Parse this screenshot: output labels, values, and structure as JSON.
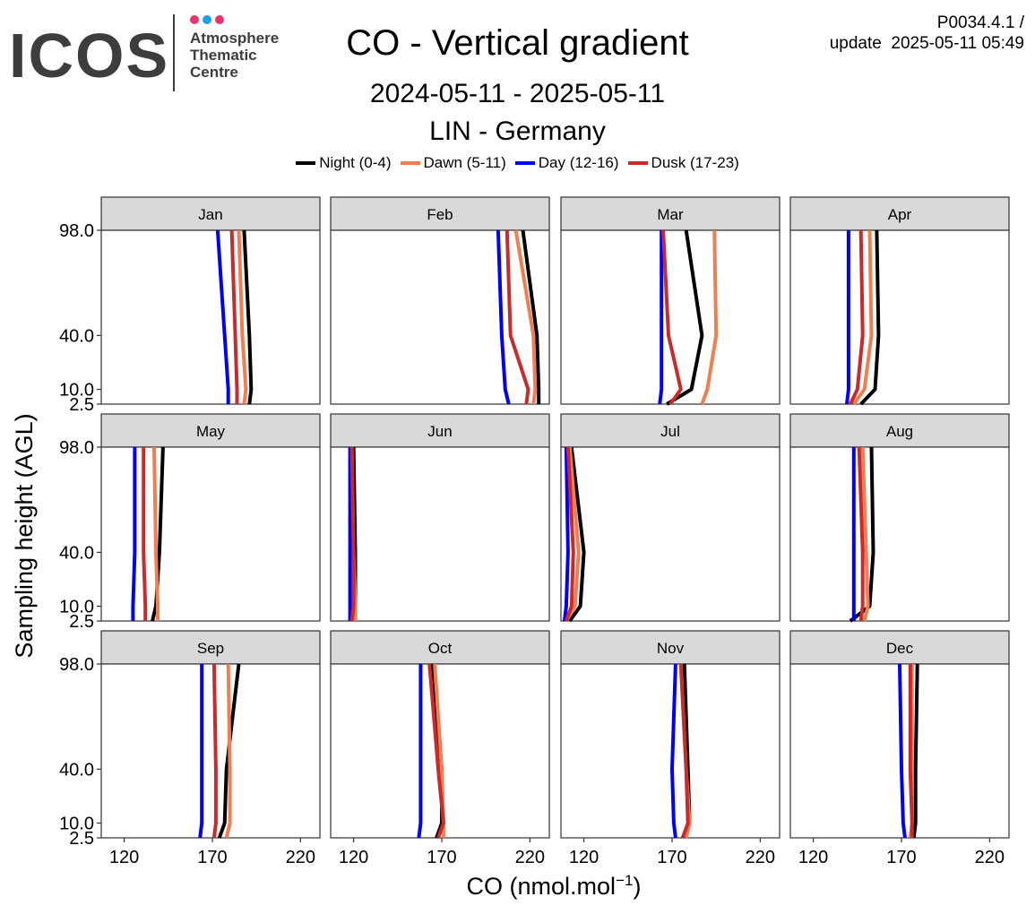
{
  "logo": {
    "wordmark": "ICOS",
    "line1": "Atmosphere",
    "line2": "Thematic",
    "line3": "Centre",
    "dot_colors": [
      "#e8336b",
      "#1aa3e8",
      "#e8336b"
    ]
  },
  "version": {
    "line1": "P0034.4.1 /",
    "line2": "update  2025-05-11 05:49"
  },
  "chart_data": {
    "type": "line",
    "title": "CO - Vertical gradient",
    "subtitle": "2024-05-11 - 2025-05-11",
    "station": "LIN - Germany",
    "xlabel": "CO (nmol.mol",
    "xlabel_sup": "−1",
    "xlabel_close": ")",
    "ylabel": "Sampling height (AGL)",
    "xlim": [
      107,
      231
    ],
    "xticks": [
      120,
      170,
      220
    ],
    "yticks": [
      2.5,
      10.0,
      40.0,
      98.0
    ],
    "ytick_labels": [
      "2.5",
      "10.0",
      "40.0",
      "98.0"
    ],
    "heights": [
      2.5,
      10.0,
      40.0,
      98.0
    ],
    "grid": false,
    "legend_position": "top",
    "series": [
      {
        "name": "Night (0-4)",
        "color": "#000000"
      },
      {
        "name": "Dawn (5-11)",
        "color": "#f47d4f"
      },
      {
        "name": "Day (12-16)",
        "color": "#0000ff"
      },
      {
        "name": "Dusk (17-23)",
        "color": "#cc2a2a"
      }
    ],
    "panels": [
      {
        "month": "Jan",
        "values": {
          "night": [
            191,
            192,
            191,
            188
          ],
          "dawn": [
            188,
            189,
            187,
            185
          ],
          "day": [
            179,
            179,
            177,
            173
          ],
          "dusk": [
            184,
            184,
            183,
            181
          ]
        }
      },
      {
        "month": "Feb",
        "values": {
          "night": [
            225,
            225,
            224,
            216
          ],
          "dawn": [
            222,
            223,
            222,
            212
          ],
          "day": [
            208,
            206,
            204,
            202
          ],
          "dusk": [
            218,
            219,
            209,
            207
          ]
        }
      },
      {
        "month": "Mar",
        "values": {
          "night": [
            167,
            181,
            187,
            178
          ],
          "dawn": [
            187,
            190,
            195,
            194
          ],
          "day": [
            163,
            164,
            164,
            164
          ],
          "dusk": [
            169,
            175,
            168,
            165
          ]
        }
      },
      {
        "month": "Apr",
        "values": {
          "night": [
            147,
            155,
            157,
            156
          ],
          "dawn": [
            143,
            149,
            153,
            152
          ],
          "day": [
            139,
            140,
            140,
            140
          ],
          "dusk": [
            141,
            145,
            148,
            147
          ]
        }
      },
      {
        "month": "May",
        "values": {
          "night": [
            136,
            138,
            140,
            142
          ],
          "dawn": [
            139,
            139,
            138,
            137
          ],
          "day": [
            125,
            125,
            126,
            126
          ],
          "dusk": [
            132,
            132,
            131,
            131
          ]
        }
      },
      {
        "month": "Jun",
        "values": {
          "night": [
            119,
            121,
            121,
            120
          ],
          "dawn": [
            121,
            121,
            120,
            119
          ],
          "day": [
            118,
            118,
            118,
            118
          ],
          "dusk": [
            119,
            120,
            120,
            119
          ]
        }
      },
      {
        "month": "Jul",
        "values": {
          "night": [
            112,
            118,
            120,
            113
          ],
          "dawn": [
            110,
            115,
            117,
            112
          ],
          "day": [
            109,
            110,
            111,
            110
          ],
          "dusk": [
            110,
            113,
            114,
            111
          ]
        }
      },
      {
        "month": "Aug",
        "values": {
          "night": [
            141,
            152,
            154,
            153
          ],
          "dawn": [
            149,
            151,
            150,
            148
          ],
          "day": [
            143,
            143,
            143,
            143
          ],
          "dusk": [
            147,
            148,
            148,
            146
          ]
        }
      },
      {
        "month": "Sep",
        "values": {
          "night": [
            174,
            177,
            178,
            185
          ],
          "dawn": [
            178,
            180,
            180,
            179
          ],
          "day": [
            163,
            164,
            164,
            164
          ],
          "dusk": [
            171,
            172,
            172,
            171
          ]
        }
      },
      {
        "month": "Oct",
        "values": {
          "night": [
            167,
            170,
            170,
            164
          ],
          "dawn": [
            171,
            171,
            170,
            166
          ],
          "day": [
            157,
            158,
            158,
            158
          ],
          "dusk": [
            168,
            171,
            168,
            163
          ]
        }
      },
      {
        "month": "Nov",
        "values": {
          "night": [
            176,
            180,
            179,
            177
          ],
          "dawn": [
            178,
            180,
            178,
            175
          ],
          "day": [
            172,
            171,
            170,
            172
          ],
          "dusk": [
            176,
            179,
            178,
            175
          ]
        }
      },
      {
        "month": "Dec",
        "values": {
          "night": [
            177,
            178,
            178,
            179
          ],
          "dawn": [
            175,
            176,
            176,
            176
          ],
          "day": [
            172,
            171,
            170,
            169
          ],
          "dusk": [
            176,
            176,
            175,
            175
          ]
        }
      }
    ]
  }
}
